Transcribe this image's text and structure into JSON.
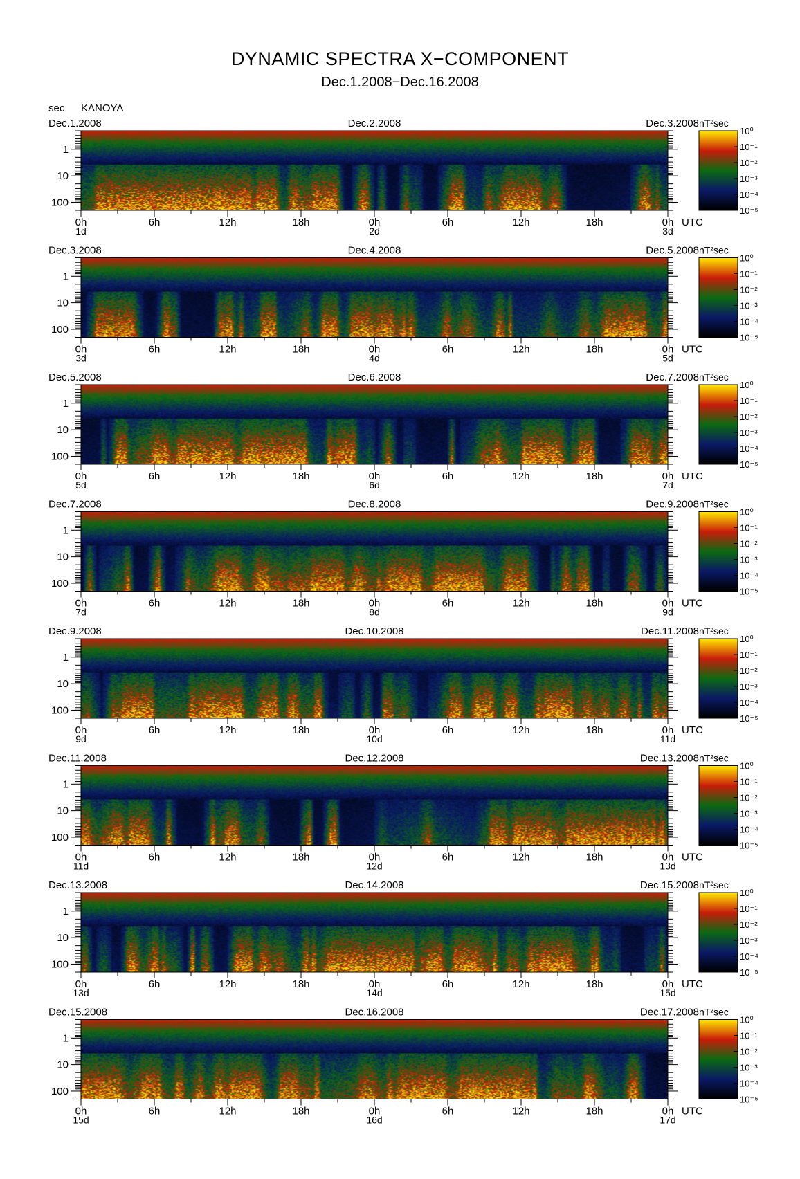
{
  "title": "DYNAMIC SPECTRA X−COMPONENT",
  "subtitle": "Dec.1.2008−Dec.16.2008",
  "station": "KANOYA",
  "yunit": "sec",
  "colorbar_unit": "nT²sec",
  "colorbar_ticks": [
    "10⁰",
    "10⁻¹",
    "10⁻²",
    "10⁻³",
    "10⁻⁴",
    "10⁻⁵"
  ],
  "chart_data": {
    "type": "heatmap",
    "title": "DYNAMIC SPECTRA X−COMPONENT",
    "subtitle": "Dec.1.2008−Dec.16.2008",
    "xlabel": "UTC",
    "ylabel": "sec",
    "yscale": "log",
    "ylim": [
      0.2,
      200
    ],
    "yticks": [
      "1",
      "10",
      "100"
    ],
    "xticks": [
      "0h",
      "6h",
      "12h",
      "18h",
      "0h",
      "6h",
      "12h",
      "18h",
      "0h"
    ],
    "colorscale": [
      "#000000",
      "#0a1a66",
      "#0c6b12",
      "#c81c0a",
      "#ffe600"
    ],
    "color_range": [
      1e-05,
      1
    ],
    "color_unit": "nT²sec",
    "panels": [
      {
        "left": "Dec.1.2008",
        "mid": "Dec.2.2008",
        "right": "Dec.3.2008",
        "days": [
          "1d",
          "2d",
          "3d"
        ],
        "seed": 11
      },
      {
        "left": "Dec.3.2008",
        "mid": "Dec.4.2008",
        "right": "Dec.5.2008",
        "days": [
          "3d",
          "4d",
          "5d"
        ],
        "seed": 23
      },
      {
        "left": "Dec.5.2008",
        "mid": "Dec.6.2008",
        "right": "Dec.7.2008",
        "days": [
          "5d",
          "6d",
          "7d"
        ],
        "seed": 37
      },
      {
        "left": "Dec.7.2008",
        "mid": "Dec.8.2008",
        "right": "Dec.9.2008",
        "days": [
          "7d",
          "8d",
          "9d"
        ],
        "seed": 41
      },
      {
        "left": "Dec.9.2008",
        "mid": "Dec.10.2008",
        "right": "Dec.11.2008",
        "days": [
          "9d",
          "10d",
          "11d"
        ],
        "seed": 53
      },
      {
        "left": "Dec.11.2008",
        "mid": "Dec.12.2008",
        "right": "Dec.13.2008",
        "days": [
          "11d",
          "12d",
          "13d"
        ],
        "seed": 67
      },
      {
        "left": "Dec.13.2008",
        "mid": "Dec.14.2008",
        "right": "Dec.15.2008",
        "days": [
          "13d",
          "14d",
          "15d"
        ],
        "seed": 79
      },
      {
        "left": "Dec.15.2008",
        "mid": "Dec.16.2008",
        "right": "Dec.17.2008",
        "days": [
          "15d",
          "16d",
          "17d"
        ],
        "seed": 83
      }
    ]
  }
}
